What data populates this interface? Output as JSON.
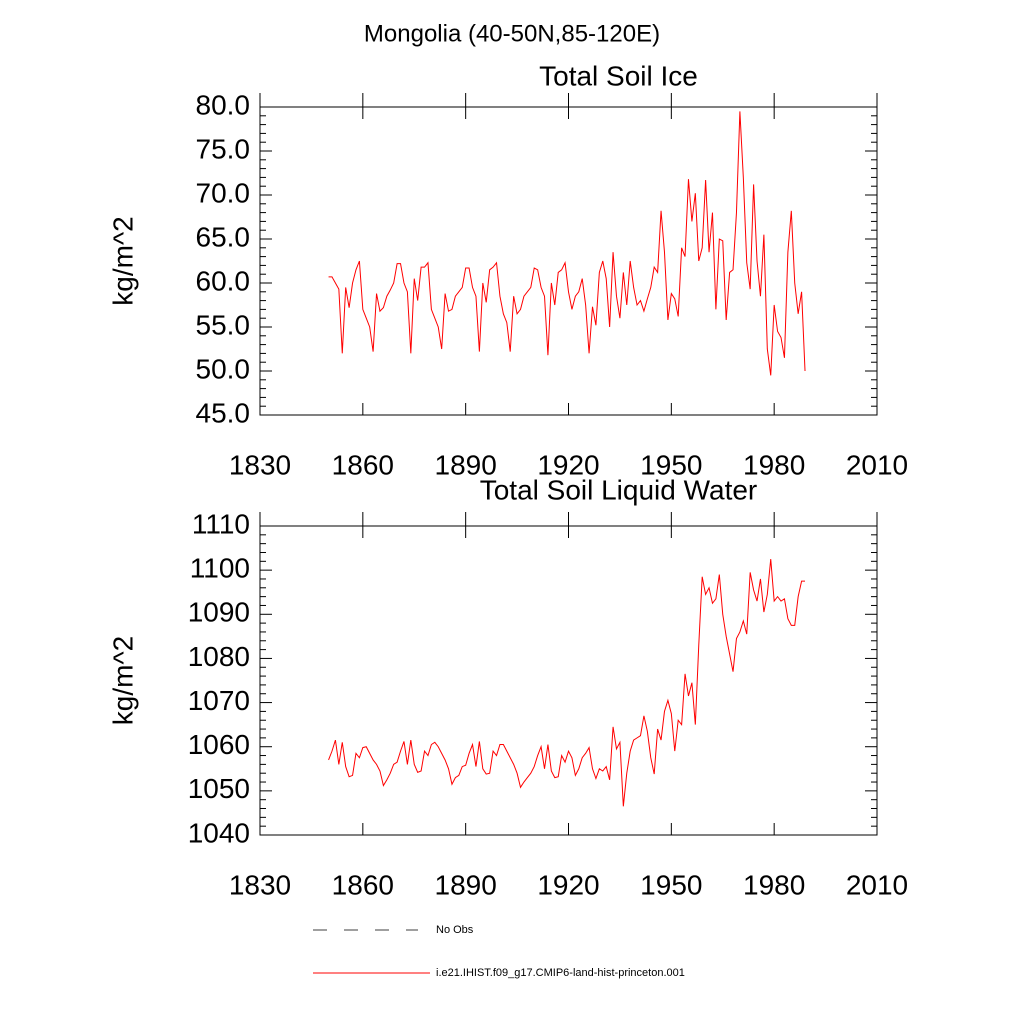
{
  "title": "Mongolia (40-50N,85-120E)",
  "legend": [
    {
      "label": "No Obs",
      "color": "#000000",
      "dashed": true
    },
    {
      "label": "i.e21.IHIST.f09_g17.CMIP6-land-hist-princeton.001",
      "color": "#ff0000",
      "dashed": false
    }
  ],
  "chart_data": [
    {
      "type": "line",
      "title": "Total Soil Ice",
      "y_label": "kg/m^2",
      "xlim": [
        1830,
        2010
      ],
      "xticks": [
        1830,
        1860,
        1890,
        1920,
        1950,
        1980,
        2010
      ],
      "ylim": [
        45,
        80
      ],
      "yticks": [
        {
          "value": 45,
          "label": "45.0"
        },
        {
          "value": 50,
          "label": "50.0"
        },
        {
          "value": 55,
          "label": "55.0"
        },
        {
          "value": 60,
          "label": "60.0"
        },
        {
          "value": 65,
          "label": "65.0"
        },
        {
          "value": 70,
          "label": "70.0"
        },
        {
          "value": 75,
          "label": "75.0"
        },
        {
          "value": 80,
          "label": "80.0"
        }
      ],
      "x": [
        1850,
        1851,
        1852,
        1853,
        1854,
        1855,
        1856,
        1857,
        1858,
        1859,
        1860,
        1861,
        1862,
        1863,
        1864,
        1865,
        1866,
        1867,
        1868,
        1869,
        1870,
        1871,
        1872,
        1873,
        1874,
        1875,
        1876,
        1877,
        1878,
        1879,
        1880,
        1881,
        1882,
        1883,
        1884,
        1885,
        1886,
        1887,
        1888,
        1889,
        1890,
        1891,
        1892,
        1893,
        1894,
        1895,
        1896,
        1897,
        1898,
        1899,
        1900,
        1901,
        1902,
        1903,
        1904,
        1905,
        1906,
        1907,
        1908,
        1909,
        1910,
        1911,
        1912,
        1913,
        1914,
        1915,
        1916,
        1917,
        1918,
        1919,
        1920,
        1921,
        1922,
        1923,
        1924,
        1925,
        1926,
        1927,
        1928,
        1929,
        1930,
        1931,
        1932,
        1933,
        1934,
        1935,
        1936,
        1937,
        1938,
        1939,
        1940,
        1941,
        1942,
        1943,
        1944,
        1945,
        1946,
        1947,
        1948,
        1949,
        1950,
        1951,
        1952,
        1953,
        1954,
        1955,
        1956,
        1957,
        1958,
        1959,
        1960,
        1961,
        1962,
        1963,
        1964,
        1965,
        1966,
        1967,
        1968,
        1969,
        1970,
        1971,
        1972,
        1973,
        1974,
        1975,
        1976,
        1977,
        1978,
        1979,
        1980,
        1981,
        1982,
        1983,
        1984,
        1985,
        1986,
        1987,
        1988,
        1989
      ],
      "series": [
        {
          "color": "#ff0000",
          "values": [
            60.7,
            60.7,
            60.0,
            59.3,
            52.0,
            59.5,
            57.2,
            60.0,
            61.5,
            62.5,
            57.0,
            56.0,
            55.0,
            52.2,
            58.8,
            56.8,
            57.2,
            58.5,
            59.2,
            60.0,
            62.2,
            62.2,
            60.0,
            59.0,
            52.0,
            60.5,
            58.0,
            61.8,
            61.8,
            62.3,
            57.0,
            56.0,
            55.0,
            52.5,
            58.8,
            56.8,
            57.0,
            58.5,
            59.0,
            59.5,
            61.7,
            61.7,
            59.5,
            58.5,
            52.2,
            60.0,
            57.8,
            61.5,
            61.8,
            62.3,
            58.5,
            56.5,
            55.5,
            52.2,
            58.5,
            56.5,
            57.0,
            58.5,
            59.0,
            59.5,
            61.7,
            61.5,
            59.5,
            58.5,
            51.8,
            60.0,
            57.5,
            61.2,
            61.5,
            62.3,
            59.0,
            57.0,
            58.5,
            59.0,
            60.5,
            57.5,
            52.0,
            57.3,
            55.2,
            61.2,
            62.5,
            60.5,
            55.0,
            63.5,
            58.5,
            56.0,
            61.2,
            57.5,
            62.5,
            59.5,
            57.5,
            58.0,
            56.8,
            58.2,
            59.5,
            61.8,
            61.2,
            68.2,
            63.5,
            55.8,
            58.8,
            58.2,
            56.2,
            64.0,
            63.0,
            71.8,
            67.0,
            70.2,
            62.5,
            64.0,
            71.7,
            63.5,
            68.0,
            57.0,
            65.0,
            64.8,
            55.8,
            61.2,
            61.5,
            68.0,
            79.5,
            72.0,
            62.3,
            59.3,
            71.2,
            62.5,
            58.5,
            65.5,
            52.5,
            49.5,
            57.5,
            54.5,
            53.8,
            51.5,
            63.5,
            68.2,
            60.0,
            56.5,
            59.0,
            50.0
          ]
        }
      ]
    },
    {
      "type": "line",
      "title": "Total Soil Liquid Water",
      "y_label": "kg/m^2",
      "xlim": [
        1830,
        2010
      ],
      "xticks": [
        1830,
        1860,
        1890,
        1920,
        1950,
        1980,
        2010
      ],
      "ylim": [
        1040,
        1110
      ],
      "yticks": [
        1040,
        1050,
        1060,
        1070,
        1080,
        1090,
        1100,
        1110
      ],
      "x": [
        1850,
        1851,
        1852,
        1853,
        1854,
        1855,
        1856,
        1857,
        1858,
        1859,
        1860,
        1861,
        1862,
        1863,
        1864,
        1865,
        1866,
        1867,
        1868,
        1869,
        1870,
        1871,
        1872,
        1873,
        1874,
        1875,
        1876,
        1877,
        1878,
        1879,
        1880,
        1881,
        1882,
        1883,
        1884,
        1885,
        1886,
        1887,
        1888,
        1889,
        1890,
        1891,
        1892,
        1893,
        1894,
        1895,
        1896,
        1897,
        1898,
        1899,
        1900,
        1901,
        1902,
        1903,
        1904,
        1905,
        1906,
        1907,
        1908,
        1909,
        1910,
        1911,
        1912,
        1913,
        1914,
        1915,
        1916,
        1917,
        1918,
        1919,
        1920,
        1921,
        1922,
        1923,
        1924,
        1925,
        1926,
        1927,
        1928,
        1929,
        1930,
        1931,
        1932,
        1933,
        1934,
        1935,
        1936,
        1937,
        1938,
        1939,
        1940,
        1941,
        1942,
        1943,
        1944,
        1945,
        1946,
        1947,
        1948,
        1949,
        1950,
        1951,
        1952,
        1953,
        1954,
        1955,
        1956,
        1957,
        1958,
        1959,
        1960,
        1961,
        1962,
        1963,
        1964,
        1965,
        1966,
        1967,
        1968,
        1969,
        1970,
        1971,
        1972,
        1973,
        1974,
        1975,
        1976,
        1977,
        1978,
        1979,
        1980,
        1981,
        1982,
        1983,
        1984,
        1985,
        1986,
        1987,
        1988,
        1989
      ],
      "series": [
        {
          "color": "#ff0000",
          "values": [
            1057,
            1059,
            1061.5,
            1056,
            1061,
            1055.5,
            1053.2,
            1053.5,
            1058.5,
            1057.5,
            1059.8,
            1060,
            1058.5,
            1057,
            1056,
            1054.5,
            1051.2,
            1052.5,
            1054,
            1056,
            1056.5,
            1059,
            1061.2,
            1056,
            1061.5,
            1056,
            1054.2,
            1054.5,
            1059,
            1058,
            1060.5,
            1061,
            1060,
            1058.5,
            1057,
            1055,
            1051.5,
            1053,
            1053.5,
            1055.5,
            1055.8,
            1058.5,
            1060.5,
            1055.5,
            1061.2,
            1055,
            1053.8,
            1054,
            1059,
            1058,
            1060.5,
            1060.5,
            1059,
            1057.5,
            1056,
            1054,
            1050.8,
            1052,
            1053,
            1054,
            1055.5,
            1058,
            1060,
            1055,
            1060.5,
            1054.5,
            1053,
            1053.2,
            1058,
            1056.5,
            1059,
            1057.5,
            1053.5,
            1055,
            1057.5,
            1058.5,
            1059.8,
            1055,
            1052.8,
            1055,
            1054.5,
            1055.5,
            1052.5,
            1064.5,
            1059.5,
            1061,
            1046.5,
            1054,
            1059,
            1061.5,
            1062,
            1062.5,
            1067,
            1063.5,
            1057.5,
            1053.8,
            1064,
            1061.5,
            1068,
            1070.5,
            1067.5,
            1059,
            1066,
            1065,
            1076.5,
            1071.5,
            1074.5,
            1065,
            1083,
            1098.5,
            1094.5,
            1096,
            1092.5,
            1093.5,
            1099,
            1090,
            1085,
            1081,
            1077,
            1084.5,
            1086,
            1088.5,
            1085.5,
            1099.5,
            1095.5,
            1093,
            1098,
            1090.5,
            1094.5,
            1102.5,
            1093,
            1094,
            1093,
            1093.5,
            1089,
            1087.5,
            1087.5,
            1094,
            1097.5,
            1097.5
          ]
        }
      ]
    }
  ]
}
